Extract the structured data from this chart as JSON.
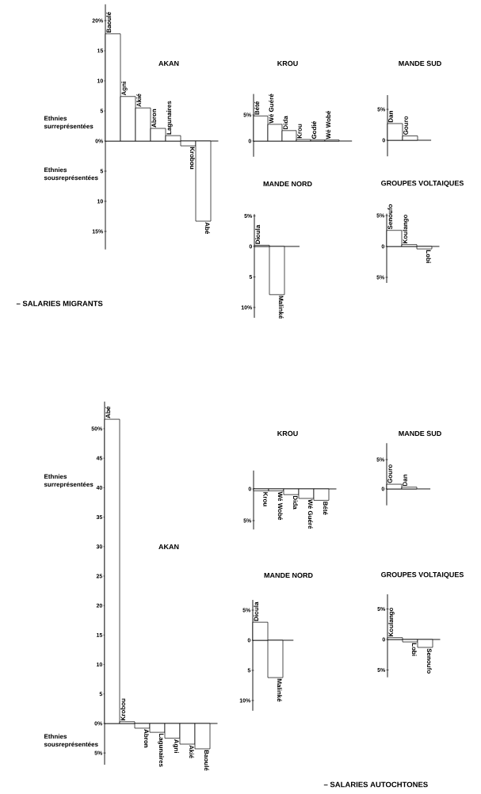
{
  "chart_data": [
    {
      "type": "bar",
      "title": "AKAN",
      "categories": [
        "Baoulé",
        "Agni",
        "Akié",
        "Abron",
        "Lagunaires",
        "Krobou",
        "Abé"
      ],
      "values": [
        17.8,
        7.4,
        5.5,
        2.1,
        0.9,
        -0.8,
        -13.3
      ],
      "color": "#ffffff",
      "ylim": [
        -18,
        22.7
      ],
      "yticks": [
        {
          "value": 20,
          "label": "20%"
        },
        15,
        10,
        5,
        {
          "value": 0,
          "label": "0%"
        },
        {
          "value": -5,
          "label": "5"
        },
        {
          "value": -10,
          "label": "10"
        },
        {
          "value": -15,
          "label": "15%"
        }
      ],
      "annotations": [
        "Ethnies surreprésentées",
        "Ethnies sousreprésentées",
        "– SALARIES MIGRANTS"
      ]
    },
    {
      "type": "bar",
      "title": "KROU",
      "categories": [
        "Bété",
        "Wé Guéré",
        "Dida",
        "Krou",
        "Godié",
        "Wé Wobé"
      ],
      "values": [
        4.8,
        3.2,
        2.0,
        0.3,
        0.2,
        0.2
      ],
      "color": "#ffffff",
      "ylim": [
        -3,
        9
      ],
      "yticks": [
        {
          "value": 5,
          "label": "5%"
        },
        0
      ]
    },
    {
      "type": "bar",
      "title": "MANDE SUD",
      "categories": [
        "Dan",
        "Gouro"
      ],
      "values": [
        2.7,
        0.7
      ],
      "color": "#ffffff",
      "ylim": [
        -2.6,
        7.3
      ],
      "yticks": [
        {
          "value": 5,
          "label": "5%"
        },
        0
      ]
    },
    {
      "type": "bar",
      "title": "MANDE NORD",
      "categories": [
        "Dioula",
        "Malinké"
      ],
      "values": [
        0.2,
        -7.9
      ],
      "color": "#ffffff",
      "ylim": [
        -11.7,
        5.3
      ],
      "yticks": [
        {
          "value": 5,
          "label": "5%"
        },
        0,
        {
          "value": -5,
          "label": "5"
        },
        {
          "value": -10,
          "label": "10%"
        }
      ]
    },
    {
      "type": "bar",
      "title": "GROUPES VOLTAIQUES",
      "categories": [
        "Senoufo",
        "Koulango",
        "Lobi"
      ],
      "values": [
        2.6,
        0.3,
        -0.4
      ],
      "color": "#ffffff",
      "ylim": [
        -5.9,
        5.3
      ],
      "yticks": [
        {
          "value": 5,
          "label": "5%"
        },
        0,
        {
          "value": -5,
          "label": "5%"
        }
      ]
    },
    {
      "type": "bar",
      "title": "AKAN",
      "categories": [
        "Abé",
        "Krobou",
        "Abron",
        "Lagunaires",
        "Agni",
        "Akié",
        "Baoulé"
      ],
      "values": [
        51.6,
        0.3,
        -0.8,
        -1.5,
        -2.5,
        -3.5,
        -4.3
      ],
      "color": "#ffffff",
      "ylim": [
        -7,
        54.6
      ],
      "yticks": [
        {
          "value": 50,
          "label": "50%"
        },
        45,
        40,
        35,
        30,
        25,
        20,
        15,
        10,
        5,
        {
          "value": 0,
          "label": "0%"
        },
        {
          "value": -5,
          "label": "5%"
        }
      ],
      "annotations": [
        "Ethnies surreprésentées",
        "Ethnies sousreprésentées",
        "– SALARIES AUTOCHTONES"
      ]
    },
    {
      "type": "bar",
      "title": "KROU",
      "categories": [
        "Krou",
        "Wé Wobé",
        "Dida",
        "Wé Guéré",
        "Bété"
      ],
      "values": [
        -0.3,
        -0.3,
        -0.9,
        -1.5,
        -1.8
      ],
      "color": "#ffffff",
      "ylim": [
        -6.4,
        2.9
      ],
      "yticks": [
        0,
        {
          "value": -5,
          "label": "5%"
        }
      ]
    },
    {
      "type": "bar",
      "title": "MANDE SUD",
      "categories": [
        "Gouro",
        "Dan"
      ],
      "values": [
        0.8,
        0.3
      ],
      "color": "#ffffff",
      "ylim": [
        -2.8,
        7.8
      ],
      "yticks": [
        {
          "value": 5,
          "label": "5%"
        },
        0
      ]
    },
    {
      "type": "bar",
      "title": "MANDE NORD",
      "categories": [
        "Dioula",
        "Malinké"
      ],
      "values": [
        3.0,
        -6.2
      ],
      "color": "#ffffff",
      "ylim": [
        -11.7,
        6.7
      ],
      "yticks": [
        {
          "value": 5,
          "label": "5%"
        },
        0,
        {
          "value": -5,
          "label": "5"
        },
        {
          "value": -10,
          "label": "10%"
        }
      ]
    },
    {
      "type": "bar",
      "title": "GROUPES VOLTAIQUES",
      "categories": [
        "Koulango",
        "Lobi",
        "Senoufo"
      ],
      "values": [
        0.3,
        -0.4,
        -1.3
      ],
      "color": "#ffffff",
      "ylim": [
        -6.2,
        7.4
      ],
      "yticks": [
        {
          "value": 5,
          "label": "5%"
        },
        0,
        {
          "value": -5,
          "label": "5%"
        }
      ]
    }
  ]
}
